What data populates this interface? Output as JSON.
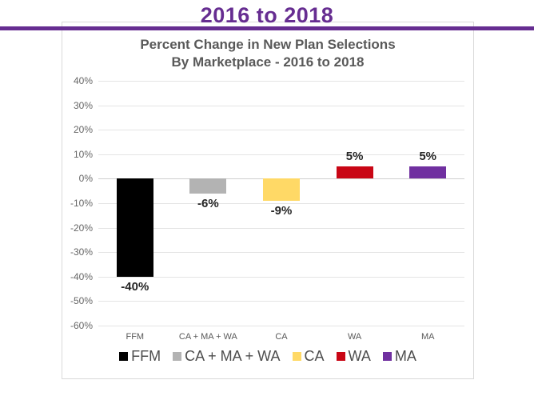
{
  "page": {
    "title": "2016 to 2018",
    "accent_color": "#662D91"
  },
  "chart_data": {
    "type": "bar",
    "title_line1": "Percent Change in New Plan Selections",
    "title_line2": "By Marketplace - 2016 to 2018",
    "categories": [
      "FFM",
      "CA + MA + WA",
      "CA",
      "WA",
      "MA"
    ],
    "values": [
      -40,
      -6,
      -9,
      5,
      5
    ],
    "data_labels": [
      "-40%",
      "-6%",
      "-9%",
      "5%",
      "5%"
    ],
    "bar_colors": [
      "#000000",
      "#B3B3B3",
      "#FFD966",
      "#C90615",
      "#7030A0"
    ],
    "y_axis": {
      "min": -60,
      "max": 40,
      "step": 10,
      "tick_labels": [
        "40%",
        "30%",
        "20%",
        "10%",
        "0%",
        "-10%",
        "-20%",
        "-30%",
        "-40%",
        "-50%",
        "-60%"
      ]
    },
    "grid": true,
    "legend_position": "bottom",
    "legend": [
      {
        "label": "FFM",
        "color": "#000000"
      },
      {
        "label": "CA + MA + WA",
        "color": "#B3B3B3"
      },
      {
        "label": "CA",
        "color": "#FFD966"
      },
      {
        "label": "WA",
        "color": "#C90615"
      },
      {
        "label": "MA",
        "color": "#7030A0"
      }
    ]
  }
}
